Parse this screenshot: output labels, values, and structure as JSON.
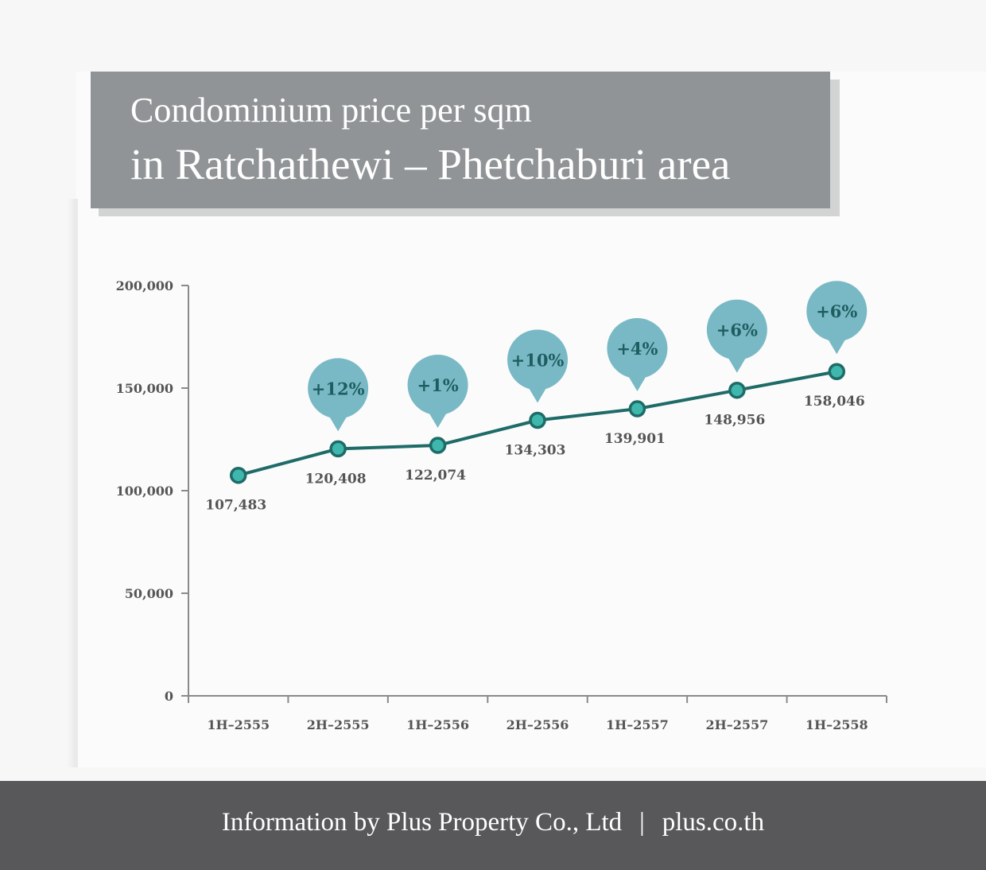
{
  "title": {
    "line1": "Condominium price per sqm",
    "line2": "in Ratchathewi – Phetchaburi area"
  },
  "footer": {
    "credit": "Information by Plus Property Co., Ltd",
    "separator": "|",
    "website": "plus.co.th"
  },
  "colors": {
    "line": "#1e6b68",
    "marker_fill": "#3fb7ad",
    "bubble": "#79b9c5",
    "bubble_text": "#1e5d60",
    "axis": "#8a8a8a",
    "label_text": "#555555"
  },
  "chart_data": {
    "type": "line",
    "title": "Condominium price per sqm in Ratchathewi – Phetchaburi area",
    "xlabel": "",
    "ylabel": "",
    "categories": [
      "1H–2555",
      "2H–2555",
      "1H–2556",
      "2H–2556",
      "1H–2557",
      "2H–2557",
      "1H–2558"
    ],
    "series": [
      {
        "values": [
          107483,
          120408,
          122074,
          134303,
          139901,
          148956,
          158046
        ]
      }
    ],
    "value_labels": [
      "107,483",
      "120,408",
      "122,074",
      "134,303",
      "139,901",
      "148,956",
      "158,046"
    ],
    "growth_labels": [
      "",
      "+12%",
      "+1%",
      "+10%",
      "+4%",
      "+6%",
      "+6%"
    ],
    "ylim": [
      0,
      200000
    ],
    "yticks": [
      0,
      50000,
      100000,
      150000,
      200000
    ],
    "ytick_labels": [
      "0",
      "50,000",
      "100,000",
      "150,000",
      "200,000"
    ],
    "grid": false,
    "legend": "none"
  }
}
